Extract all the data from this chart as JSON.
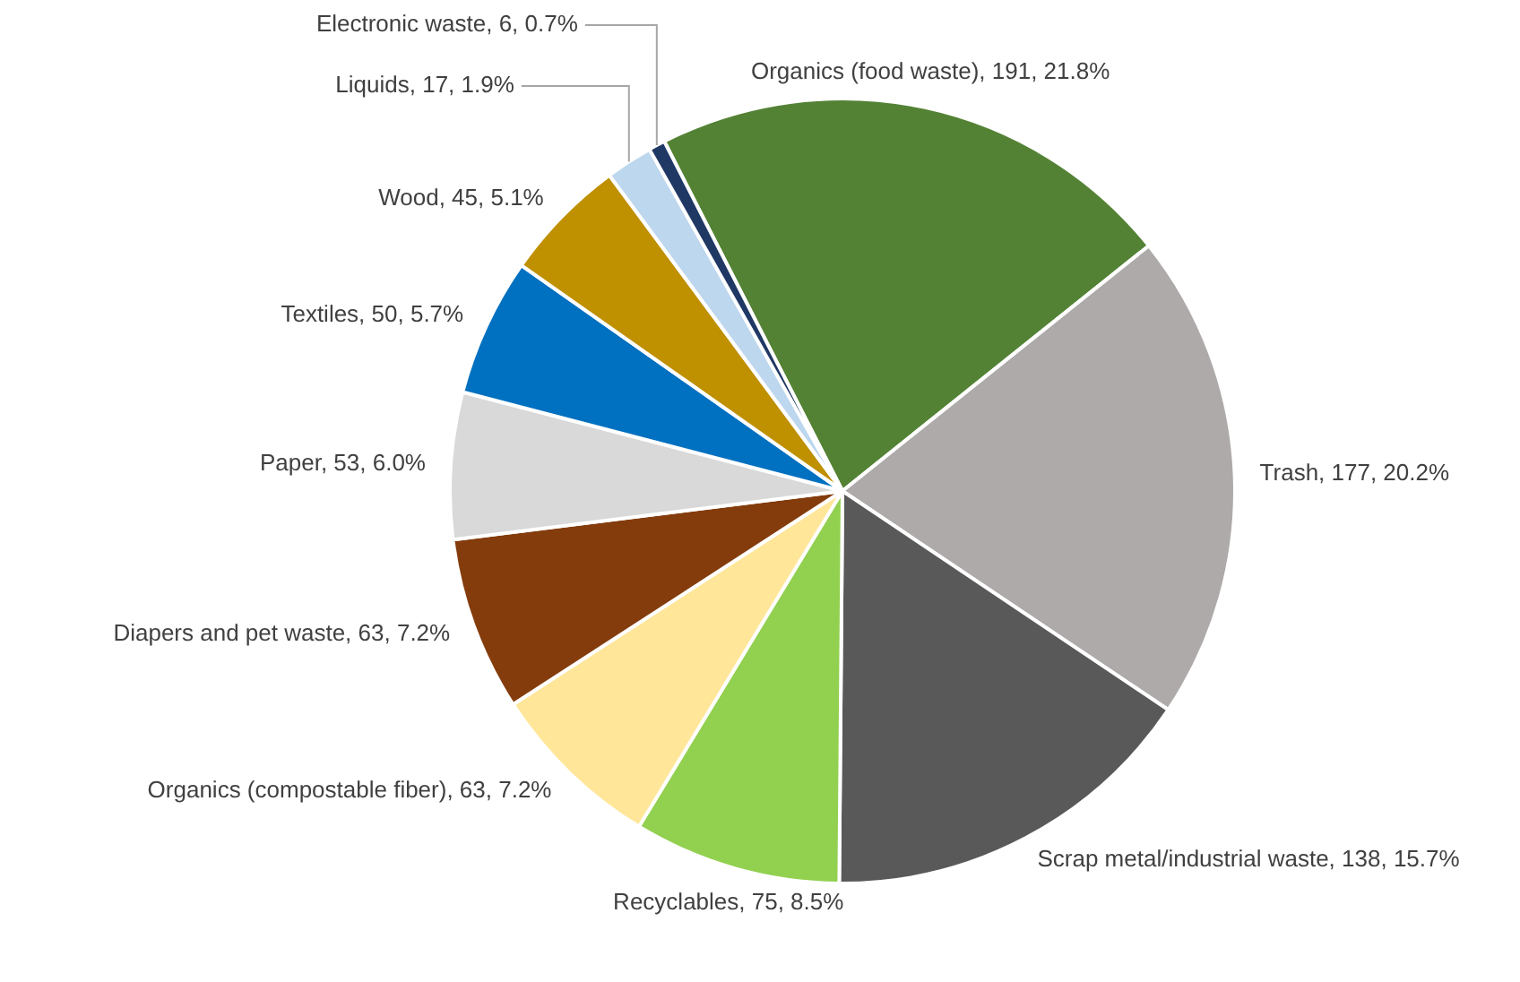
{
  "chart_data": {
    "type": "pie",
    "categories": [
      "Organics (food waste)",
      "Trash",
      "Scrap metal/industrial waste",
      "Recyclables",
      "Organics (compostable fiber)",
      "Diapers and pet waste",
      "Paper",
      "Textiles",
      "Wood",
      "Liquids",
      "Electronic waste"
    ],
    "values": [
      191,
      177,
      138,
      75,
      63,
      63,
      53,
      50,
      45,
      17,
      6
    ],
    "value_labels": [
      "191, 21.8%",
      "177, 20.2%",
      "138, 15.7%",
      "75, 8.5%",
      "63, 7.2%",
      "63, 7.2%",
      "53, 6.0%",
      "50, 5.7%",
      "45, 5.1%",
      "17, 1.9%",
      "6, 0.7%"
    ],
    "colors": [
      "#548235",
      "#aeaaaa",
      "#595959",
      "#92d050",
      "#ffe699",
      "#843c0c",
      "#d9d9d9",
      "#0070c0",
      "#bf9000",
      "#bdd7ee",
      "#203864"
    ],
    "legend": false
  }
}
